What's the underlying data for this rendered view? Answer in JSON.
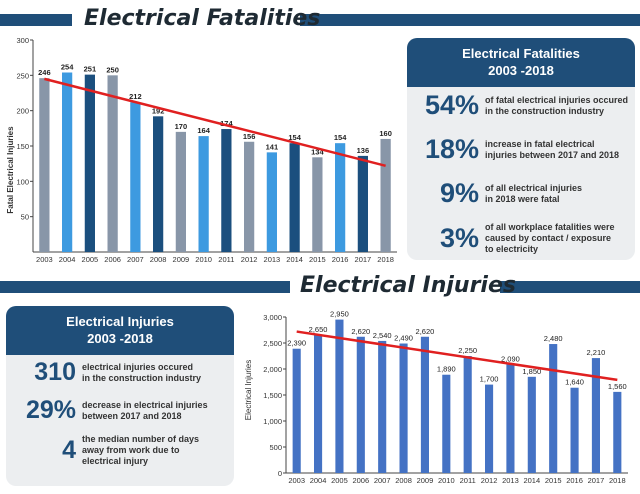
{
  "colors": {
    "navy": "#1f4e79",
    "gray": "#8896a8",
    "dark": "#1b4f7e",
    "light": "#3d9ae0",
    "blue": "#4472c4",
    "trend": "#e02020"
  },
  "fatalities": {
    "title": "Electrical Fatalities",
    "chart_data": {
      "type": "bar",
      "categories": [
        "2003",
        "2004",
        "2005",
        "2006",
        "2007",
        "2008",
        "2009",
        "2010",
        "2011",
        "2012",
        "2013",
        "2014",
        "2015",
        "2016",
        "2017",
        "2018"
      ],
      "values": [
        246,
        254,
        251,
        250,
        212,
        192,
        170,
        164,
        174,
        156,
        141,
        154,
        134,
        154,
        136,
        160
      ],
      "bar_colors": [
        "gray",
        "light",
        "dark",
        "gray",
        "light",
        "dark",
        "gray",
        "light",
        "dark",
        "gray",
        "light",
        "dark",
        "gray",
        "light",
        "dark",
        "gray"
      ],
      "ylabel": "Fatal Electrical Injuries",
      "ylim": [
        0,
        300
      ],
      "yticks": [
        "50",
        "100",
        "150",
        "200",
        "250",
        "300"
      ],
      "ytick_values": [
        50,
        100,
        150,
        200,
        250,
        300
      ],
      "trendline": {
        "start": 245,
        "end": 122
      },
      "grid": false
    },
    "panel": {
      "title_line1": "Electrical Fatalities",
      "title_line2": "2003 -2018",
      "stats": [
        {
          "big": "54%",
          "line1": "of fatal electrical injuries occured",
          "line2": "in the construction industry"
        },
        {
          "big": "18%",
          "line1": "increase in fatal electrical",
          "line2": "injuries between 2017 and 2018"
        },
        {
          "big": "9%",
          "line1": "of all electrical injuries",
          "line2": "in 2018 were fatal"
        },
        {
          "big": "3%",
          "line1": "of all workplace fatalities were",
          "line2": "caused by contact / exposure",
          "line3": "to electricity"
        }
      ]
    }
  },
  "injuries": {
    "title": "Electrical Injuries",
    "chart_data": {
      "type": "bar",
      "categories": [
        "2003",
        "2004",
        "2005",
        "2006",
        "2007",
        "2008",
        "2009",
        "2010",
        "2011",
        "2012",
        "2013",
        "2014",
        "2015",
        "2016",
        "2017",
        "2018"
      ],
      "values": [
        2390,
        2650,
        2950,
        2620,
        2540,
        2490,
        2620,
        1890,
        2250,
        1700,
        2090,
        1850,
        2480,
        1640,
        2210,
        1560
      ],
      "value_labels": [
        "2,390",
        "2,650",
        "2,950",
        "2,620",
        "2,540",
        "2,490",
        "2,620",
        "1,890",
        "2,250",
        "1,700",
        "2,090",
        "1,850",
        "2,480",
        "1,640",
        "2,210",
        "1,560"
      ],
      "ylabel": "Electrical Injuries",
      "ylim": [
        0,
        3000
      ],
      "yticks": [
        "0",
        "500",
        "1,000",
        "1,500",
        "2,000",
        "2,500",
        "3,000"
      ],
      "ytick_values": [
        0,
        500,
        1000,
        1500,
        2000,
        2500,
        3000
      ],
      "trendline": {
        "start": 2720,
        "end": 1790
      },
      "grid": false
    },
    "panel": {
      "title_line1": "Electrical Injuries",
      "title_line2": "2003 -2018",
      "stats": [
        {
          "big": "310",
          "line1": "electrical injuries occured",
          "line2": "in the construction industry"
        },
        {
          "big": "29%",
          "line1": "decrease in electrical injuries",
          "line2": "between 2017 and 2018"
        },
        {
          "big": "4",
          "line1": "the median number of days",
          "line2": "away from work due to",
          "line3": "electrical injury"
        }
      ]
    }
  }
}
